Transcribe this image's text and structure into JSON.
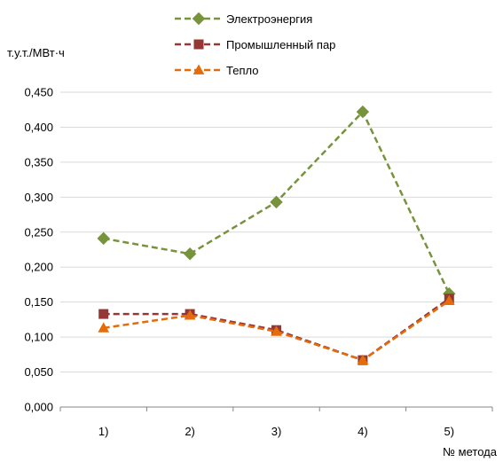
{
  "chart_data": {
    "type": "line",
    "title": "",
    "ylabel": "т.у.т./МВт·ч",
    "xlabel": "№ метода",
    "categories": [
      "1)",
      "2)",
      "3)",
      "4)",
      "5)"
    ],
    "y_ticks": [
      "0,000",
      "0,050",
      "0,100",
      "0,150",
      "0,200",
      "0,250",
      "0,300",
      "0,350",
      "0,400",
      "0,450"
    ],
    "ylim": [
      0,
      0.45
    ],
    "grid": true,
    "legend_position": "top",
    "series": [
      {
        "name": "Электроэнергия",
        "values": [
          0.241,
          0.219,
          0.293,
          0.422,
          0.162
        ],
        "color": "#77933c",
        "marker": "diamond",
        "line_style": "dashed"
      },
      {
        "name": "Промышленный пар",
        "values": [
          0.133,
          0.133,
          0.11,
          0.067,
          0.155
        ],
        "color": "#953735",
        "marker": "square",
        "line_style": "dashed"
      },
      {
        "name": "Тепло",
        "values": [
          0.113,
          0.131,
          0.108,
          0.067,
          0.152
        ],
        "color": "#e46c0a",
        "marker": "triangle",
        "line_style": "dashed"
      }
    ]
  }
}
